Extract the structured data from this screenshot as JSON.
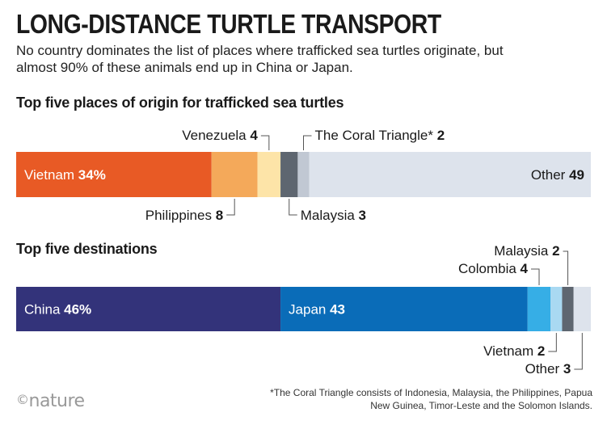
{
  "header": {
    "title": "LONG-DISTANCE TURTLE TRANSPORT",
    "subtitle": "No country dominates the list of places where trafficked sea turtles originate, but almost 90% of these animals end up in China or Japan."
  },
  "chart_data": [
    {
      "type": "bar",
      "orientation": "horizontal-stacked",
      "title": "Top five places of origin for trafficked sea turtles",
      "unit": "%",
      "categories": [
        "Vietnam",
        "Philippines",
        "Venezuela",
        "Malaysia",
        "The Coral Triangle*",
        "Other"
      ],
      "values": [
        34,
        8,
        4,
        3,
        2,
        49
      ],
      "value_labels": [
        "34%",
        "8",
        "4",
        "3",
        "2",
        "49"
      ],
      "colors": [
        "#e85a25",
        "#f4a95a",
        "#fde4a8",
        "#5e6670",
        "#c1c8d3",
        "#dde3ec"
      ]
    },
    {
      "type": "bar",
      "orientation": "horizontal-stacked",
      "title": "Top five destinations",
      "unit": "%",
      "categories": [
        "China",
        "Japan",
        "Colombia",
        "Vietnam",
        "Malaysia",
        "Other"
      ],
      "values": [
        46,
        43,
        4,
        2,
        2,
        3
      ],
      "value_labels": [
        "46%",
        "43",
        "4",
        "2",
        "2",
        "3"
      ],
      "colors": [
        "#33337a",
        "#0a6cb8",
        "#36aee6",
        "#a9d9f2",
        "#5e6670",
        "#dde3ec"
      ]
    }
  ],
  "footnote": "*The Coral Triangle consists of Indonesia, Malaysia, the Philippines, Papua New Guinea, Timor-Leste and the Solomon Islands.",
  "logo": {
    "symbol": "©",
    "text": "nature"
  }
}
